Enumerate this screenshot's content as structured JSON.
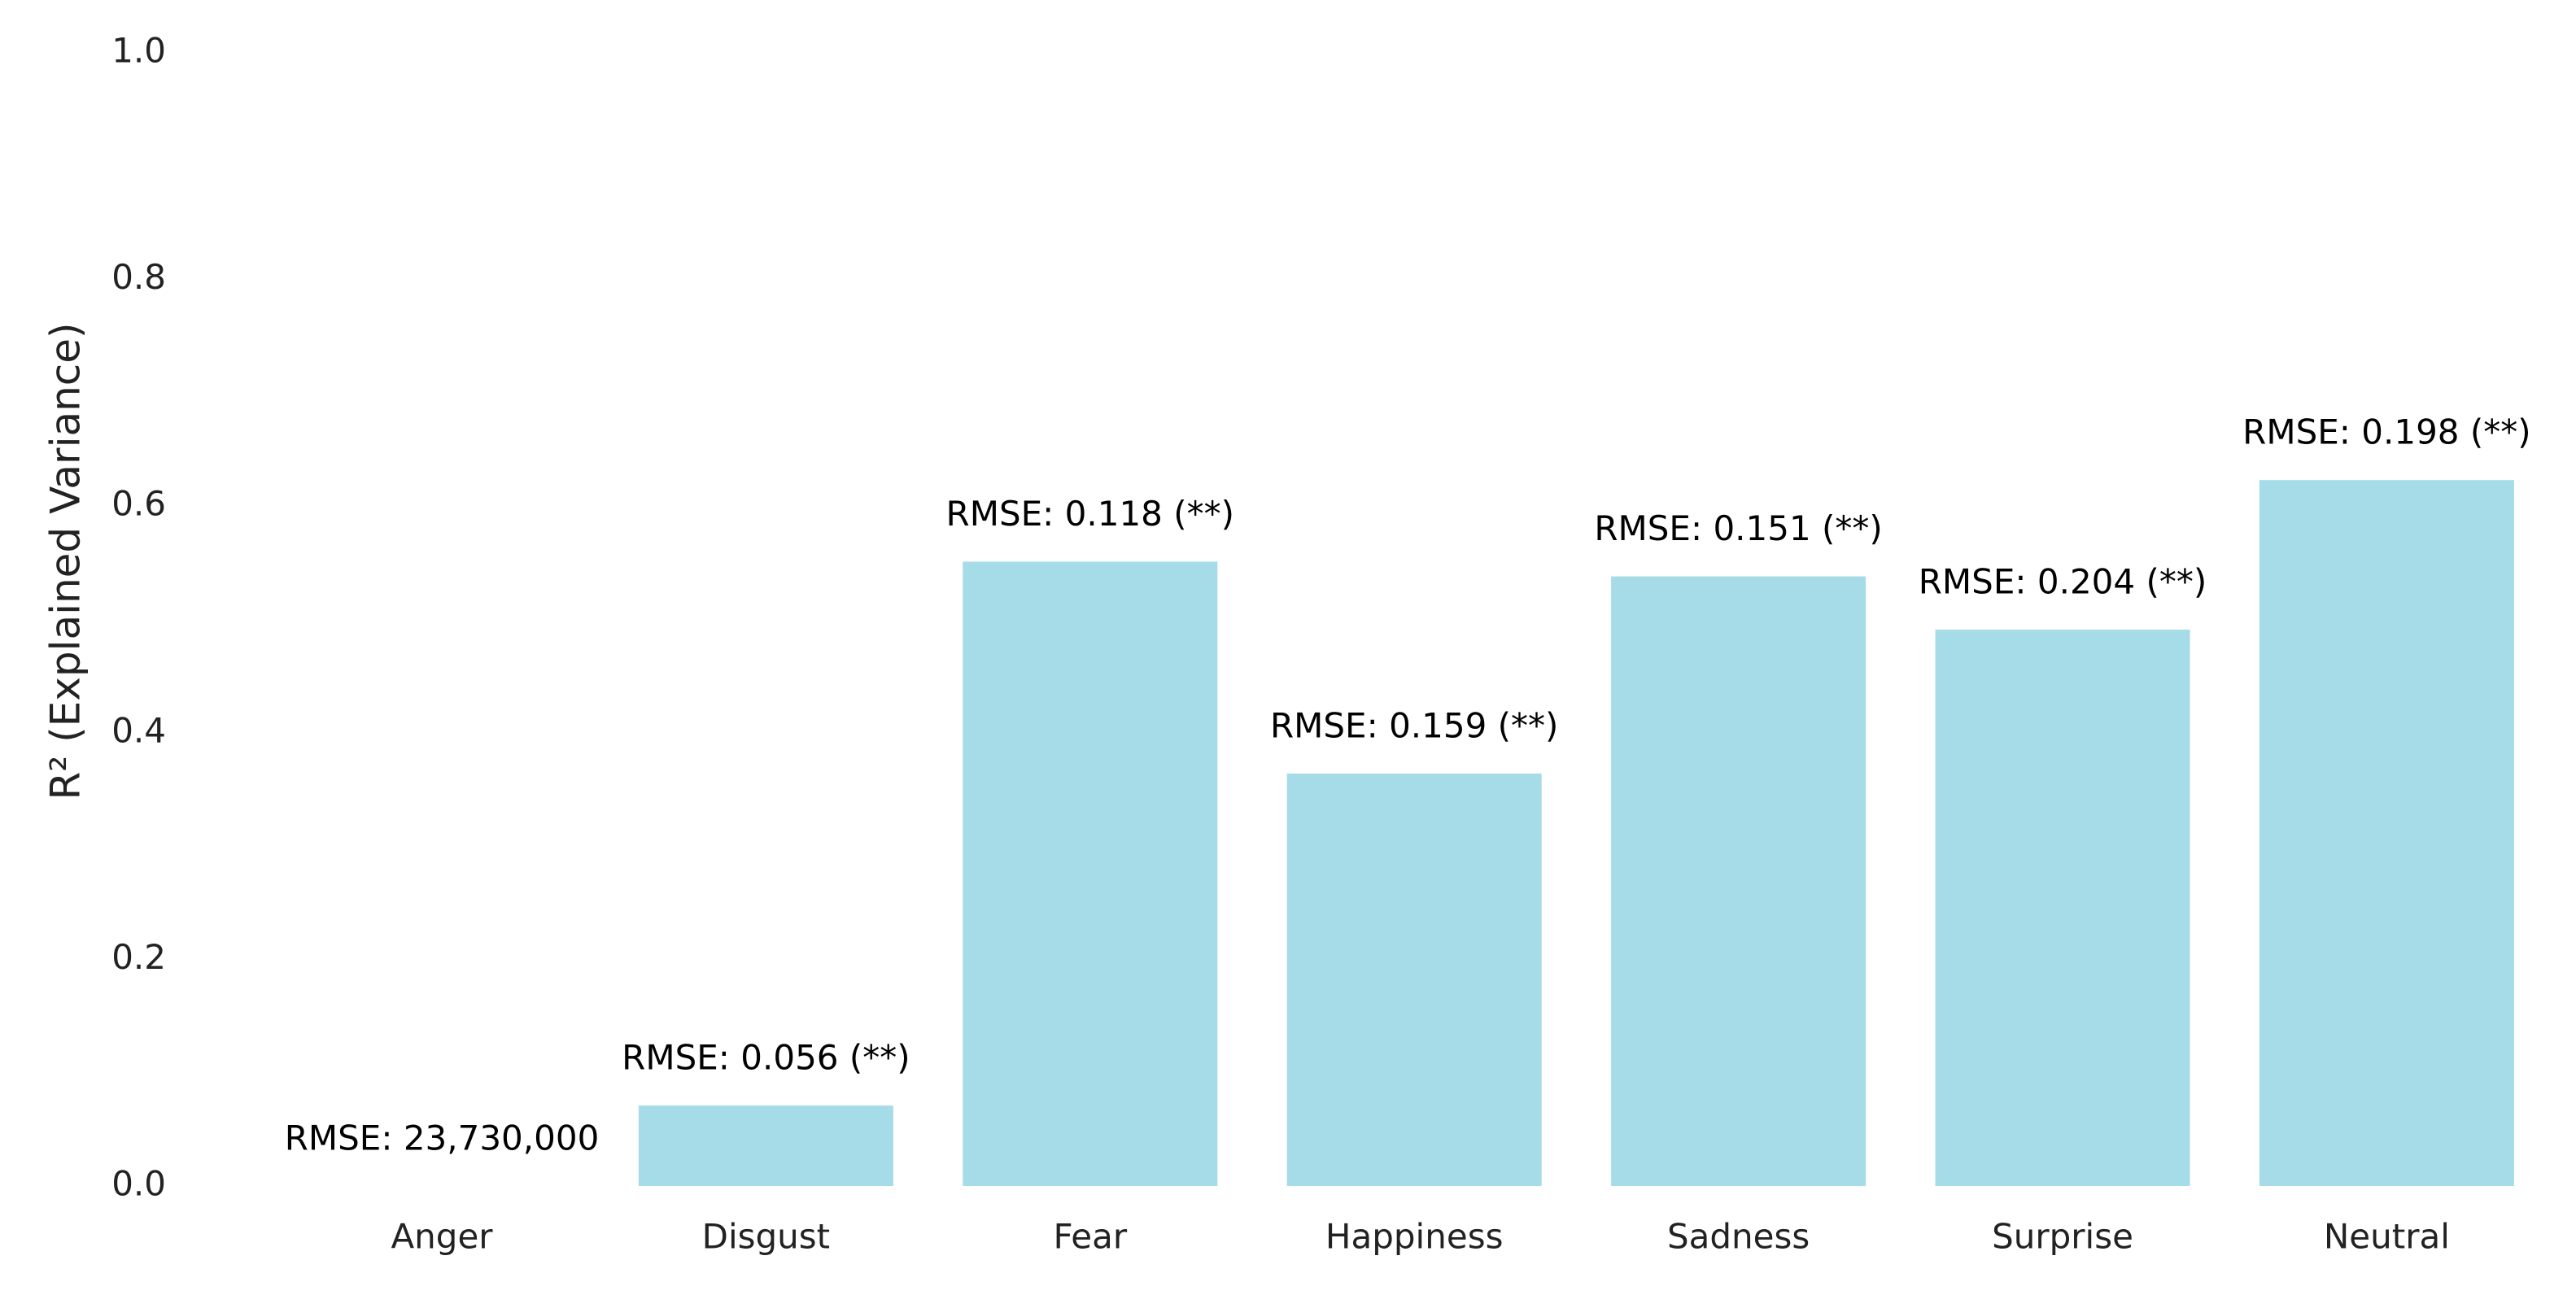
{
  "chart_data": {
    "type": "bar",
    "y_label": "R² (Explained Variance)",
    "categories": [
      "Anger",
      "Disgust",
      "Fear",
      "Happiness",
      "Sadness",
      "Surprise",
      "Neutral"
    ],
    "values": [
      0,
      0.071,
      0.551,
      0.364,
      0.538,
      0.491,
      0.623
    ],
    "bar_labels": [
      "RMSE: 23,730,000",
      "RMSE: 0.056 (**)",
      "RMSE: 0.118 (**)",
      "RMSE: 0.159 (**)",
      "RMSE: 0.151 (**)",
      "RMSE: 0.204 (**)",
      "RMSE: 0.198 (**)"
    ],
    "color": "#a6dce8",
    "ylim": [
      0,
      1
    ],
    "yticks": [
      {
        "value": 0,
        "label": "0.0"
      },
      0.2,
      0.4,
      0.6,
      0.8,
      {
        "value": 1,
        "label": "1.0"
      }
    ],
    "grid": false
  }
}
